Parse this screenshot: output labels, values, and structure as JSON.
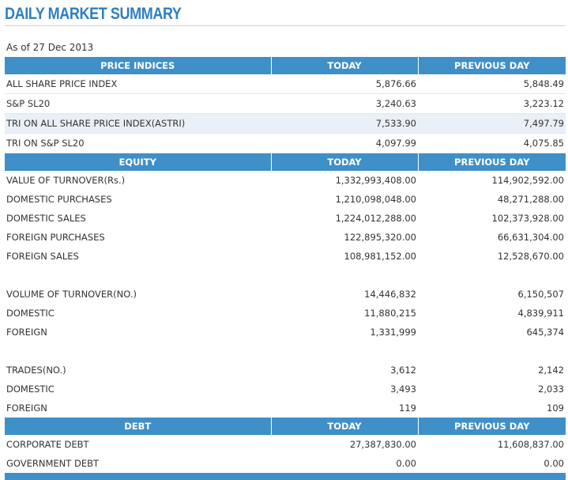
{
  "page": {
    "title": "DAILY MARKET SUMMARY",
    "as_of": "As of 27 Dec 2013"
  },
  "price_indices": {
    "headers": [
      "PRICE INDICES",
      "TODAY",
      "PREVIOUS DAY"
    ],
    "rows": [
      {
        "label": "ALL SHARE PRICE INDEX",
        "today": "5,876.66",
        "previous": "5,848.49"
      },
      {
        "label": "S&P SL20",
        "today": "3,240.63",
        "previous": "3,223.12"
      },
      {
        "label": "TRI ON ALL SHARE PRICE INDEX(ASTRI)",
        "today": "7,533.90",
        "previous": "7,497.79"
      },
      {
        "label": "TRI ON S&P SL20",
        "today": "4,097.99",
        "previous": "4,075.85"
      }
    ]
  },
  "equity": {
    "headers": [
      "EQUITY",
      "TODAY",
      "PREVIOUS DAY"
    ],
    "turnover_value": [
      {
        "label": "VALUE OF TURNOVER(Rs.)",
        "today": "1,332,993,408.00",
        "previous": "114,902,592.00"
      },
      {
        "label": "DOMESTIC PURCHASES",
        "today": "1,210,098,048.00",
        "previous": "48,271,288.00"
      },
      {
        "label": "DOMESTIC SALES",
        "today": "1,224,012,288.00",
        "previous": "102,373,928.00"
      },
      {
        "label": "FOREIGN PURCHASES",
        "today": "122,895,320.00",
        "previous": "66,631,304.00"
      },
      {
        "label": "FOREIGN SALES",
        "today": "108,981,152.00",
        "previous": "12,528,670.00"
      }
    ],
    "turnover_volume": [
      {
        "label": "VOLUME OF TURNOVER(NO.)",
        "today": "14,446,832",
        "previous": "6,150,507"
      },
      {
        "label": "DOMESTIC",
        "today": "11,880,215",
        "previous": "4,839,911"
      },
      {
        "label": "FOREIGN",
        "today": "1,331,999",
        "previous": "645,374"
      }
    ],
    "trades": [
      {
        "label": "TRADES(NO.)",
        "today": "3,612",
        "previous": "2,142"
      },
      {
        "label": "DOMESTIC",
        "today": "3,493",
        "previous": "2,033"
      },
      {
        "label": "FOREIGN",
        "today": "119",
        "previous": "109"
      }
    ]
  },
  "debt": {
    "headers": [
      "DEBT",
      "TODAY",
      "PREVIOUS DAY"
    ],
    "rows": [
      {
        "label": "CORPORATE DEBT",
        "today": "27,387,830.00",
        "previous": "11,608,837.00"
      },
      {
        "label": "GOVERNMENT DEBT",
        "today": "0.00",
        "previous": "0.00"
      }
    ]
  },
  "colors": {
    "header_bg": "#3f8fc8",
    "title": "#2f7fc0",
    "highlight_row": "#e9f0f8"
  }
}
